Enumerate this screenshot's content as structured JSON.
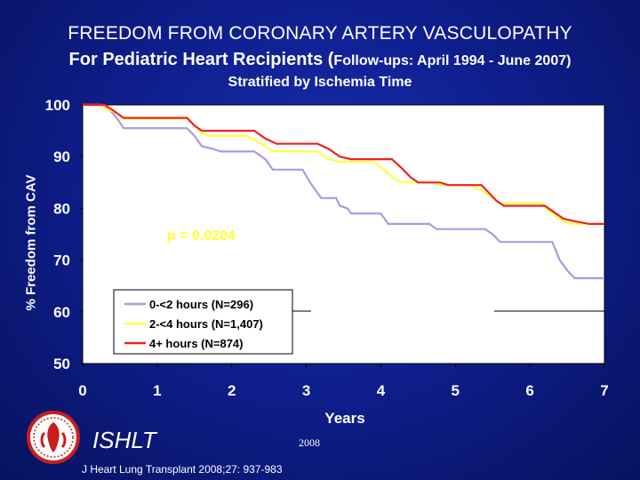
{
  "title": {
    "line1": "FREEDOM FROM CORONARY ARTERY VASCULOPATHY",
    "line2_main": "For Pediatric Heart Recipients (",
    "line2_paren": "Follow-ups: April 1994 - June 2007)",
    "subtitle": "Stratified by Ischemia Time"
  },
  "footer": {
    "logo_text": "ISHLT",
    "year": "2008",
    "reference": "J Heart Lung Transplant 2008;27: 937-983"
  },
  "colors": {
    "background": "#0f1f8f",
    "plot_area": "#ffffff",
    "pvalue": "#ffff33",
    "axis_text": "#ffffff"
  },
  "chart_data": {
    "type": "line",
    "step": true,
    "xlabel": "Years",
    "ylabel": "% Freedom from CAV",
    "xlim": [
      0,
      7
    ],
    "ylim": [
      50,
      100
    ],
    "xticks": [
      0,
      1,
      2,
      3,
      4,
      5,
      6,
      7
    ],
    "yticks": [
      50,
      60,
      70,
      80,
      90,
      100
    ],
    "grid": false,
    "legend_position": "bottom-left",
    "annotation": "p = 0.0204",
    "series": [
      {
        "name": "0-<2 hours (N=296)",
        "color": "#a99ae0",
        "points": [
          [
            0,
            100
          ],
          [
            0.25,
            100
          ],
          [
            0.3,
            99.5
          ],
          [
            0.4,
            98.5
          ],
          [
            0.48,
            97
          ],
          [
            0.55,
            95.5
          ],
          [
            1.4,
            95.5
          ],
          [
            1.5,
            94
          ],
          [
            1.6,
            92
          ],
          [
            1.75,
            91.5
          ],
          [
            1.85,
            91
          ],
          [
            2.3,
            91
          ],
          [
            2.45,
            89.5
          ],
          [
            2.55,
            87.5
          ],
          [
            2.95,
            87.5
          ],
          [
            3.05,
            85
          ],
          [
            3.2,
            82
          ],
          [
            3.4,
            82
          ],
          [
            3.45,
            80.5
          ],
          [
            3.55,
            80
          ],
          [
            3.6,
            79
          ],
          [
            4.0,
            79
          ],
          [
            4.1,
            77
          ],
          [
            4.65,
            77
          ],
          [
            4.75,
            76
          ],
          [
            5.4,
            76
          ],
          [
            5.5,
            75
          ],
          [
            5.6,
            73.5
          ],
          [
            6.3,
            73.5
          ],
          [
            6.4,
            70
          ],
          [
            6.5,
            68
          ],
          [
            6.6,
            66.5
          ],
          [
            7,
            66.5
          ]
        ]
      },
      {
        "name": "2-<4 hours (N=1,407)",
        "color": "#ffff44",
        "points": [
          [
            0,
            100
          ],
          [
            0.25,
            100
          ],
          [
            0.3,
            99.3
          ],
          [
            0.45,
            98.5
          ],
          [
            0.55,
            97.3
          ],
          [
            1.4,
            97.3
          ],
          [
            1.5,
            96
          ],
          [
            1.6,
            94.5
          ],
          [
            1.7,
            94
          ],
          [
            2.2,
            94
          ],
          [
            2.4,
            92.5
          ],
          [
            2.55,
            91
          ],
          [
            3.15,
            91
          ],
          [
            3.3,
            89.5
          ],
          [
            3.45,
            89
          ],
          [
            3.9,
            89
          ],
          [
            4.0,
            88
          ],
          [
            4.2,
            85.5
          ],
          [
            4.35,
            85
          ],
          [
            4.7,
            85
          ],
          [
            4.8,
            84.5
          ],
          [
            5.2,
            84.5
          ],
          [
            5.35,
            83.5
          ],
          [
            5.5,
            82
          ],
          [
            5.6,
            81
          ],
          [
            6.15,
            81
          ],
          [
            6.25,
            79.5
          ],
          [
            6.45,
            77.5
          ],
          [
            6.55,
            77
          ],
          [
            7,
            77
          ]
        ]
      },
      {
        "name": "4+ hours (N=874)",
        "color": "#ee2222",
        "points": [
          [
            0,
            100
          ],
          [
            0.3,
            100
          ],
          [
            0.35,
            99.5
          ],
          [
            0.45,
            98.5
          ],
          [
            0.55,
            97.5
          ],
          [
            1.4,
            97.5
          ],
          [
            1.5,
            96
          ],
          [
            1.6,
            95
          ],
          [
            2.3,
            95
          ],
          [
            2.45,
            93.5
          ],
          [
            2.6,
            92.5
          ],
          [
            3.15,
            92.5
          ],
          [
            3.3,
            91.5
          ],
          [
            3.45,
            90
          ],
          [
            3.6,
            89.5
          ],
          [
            4.15,
            89.5
          ],
          [
            4.3,
            87.5
          ],
          [
            4.4,
            86
          ],
          [
            4.5,
            85
          ],
          [
            4.8,
            85
          ],
          [
            4.9,
            84.5
          ],
          [
            5.35,
            84.5
          ],
          [
            5.45,
            83
          ],
          [
            5.55,
            81.5
          ],
          [
            5.65,
            80.5
          ],
          [
            6.2,
            80.5
          ],
          [
            6.3,
            79.5
          ],
          [
            6.45,
            78
          ],
          [
            6.6,
            77.5
          ],
          [
            6.8,
            77
          ],
          [
            7,
            77
          ]
        ]
      }
    ]
  }
}
